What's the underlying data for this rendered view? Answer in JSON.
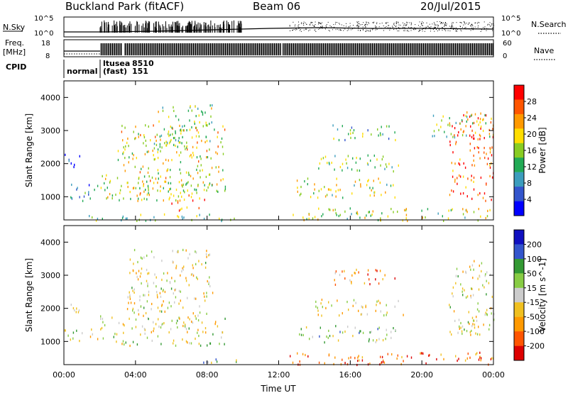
{
  "header": {
    "site_title": "Buckland Park (fitACF)",
    "beam_label": "Beam 06",
    "date_label": "20/Jul/2015"
  },
  "top_panels": {
    "nsky_label": "N.Sky",
    "nsky_ticks": [
      "10^5",
      "10^0"
    ],
    "nsearch_label": "N.Search",
    "nsearch_ticks": [
      "10^5",
      "10^0"
    ],
    "freq_label": "Freq.",
    "freq_unit": "[MHz]",
    "freq_ticks": [
      "18",
      "8"
    ],
    "nave_label": "Nave",
    "nave_ticks": [
      "60",
      "0"
    ],
    "cpid_label": "CPID",
    "cpid_modes": [
      {
        "name": "normal",
        "id": ""
      },
      {
        "name": "ltusea",
        "id": "8510"
      },
      {
        "name": "(fast)",
        "id": "151"
      }
    ]
  },
  "chart_data": [
    {
      "type": "heatmap",
      "name": "power-panel",
      "ylabel": "Slant Range [km]",
      "y_ticks": [
        "4000",
        "3000",
        "2000",
        "1000"
      ],
      "ylim": [
        300,
        4500
      ],
      "x_ticks": [
        "00:00",
        "04:00",
        "08:00",
        "12:00",
        "16:00",
        "20:00",
        "00:00"
      ],
      "xlim_hours": [
        0,
        24
      ],
      "colorbar": {
        "label": "Power [dB]",
        "ticks": [
          "28",
          "24",
          "20",
          "16",
          "12",
          "8",
          "4"
        ],
        "range": [
          0,
          30
        ],
        "colors": [
          "#0000ff",
          "#3355cc",
          "#3c9dbd",
          "#22aa55",
          "#88cc22",
          "#ffdd00",
          "#ff9900",
          "#ff5500",
          "#ff0000"
        ]
      },
      "regions": [
        {
          "t": [
            0.0,
            1.9
          ],
          "r": [
            900,
            1400
          ],
          "level": 0.3
        },
        {
          "t": [
            0.0,
            1.0
          ],
          "r": [
            1900,
            2300
          ],
          "level": 0.05
        },
        {
          "t": [
            2.0,
            7.5
          ],
          "r": [
            900,
            1700
          ],
          "level": 0.55
        },
        {
          "t": [
            3.0,
            9.0
          ],
          "r": [
            1100,
            3200
          ],
          "level": 0.6
        },
        {
          "t": [
            5.0,
            8.3
          ],
          "r": [
            2500,
            3800
          ],
          "level": 0.45
        },
        {
          "t": [
            6.0,
            8.0
          ],
          "r": [
            600,
            1100
          ],
          "level": 0.75
        },
        {
          "t": [
            0.0,
            10.0
          ],
          "r": [
            300,
            500
          ],
          "level": 0.45
        },
        {
          "t": [
            12.5,
            24.0
          ],
          "r": [
            300,
            700
          ],
          "level": 0.55
        },
        {
          "t": [
            13.0,
            18.5
          ],
          "r": [
            1000,
            1600
          ],
          "level": 0.55
        },
        {
          "t": [
            14.0,
            19.0
          ],
          "r": [
            1800,
            2300
          ],
          "level": 0.45
        },
        {
          "t": [
            15.0,
            18.5
          ],
          "r": [
            2700,
            3200
          ],
          "level": 0.4
        },
        {
          "t": [
            21.5,
            24.0
          ],
          "r": [
            900,
            3600
          ],
          "level": 0.82
        },
        {
          "t": [
            20.5,
            24.0
          ],
          "r": [
            2800,
            3500
          ],
          "level": 0.5
        }
      ]
    },
    {
      "type": "heatmap",
      "name": "velocity-panel",
      "ylabel": "Slant Range [km]",
      "y_ticks": [
        "4000",
        "3000",
        "2000",
        "1000"
      ],
      "ylim": [
        300,
        4500
      ],
      "x_ticks": [
        "00:00",
        "04:00",
        "08:00",
        "12:00",
        "16:00",
        "20:00",
        "00:00"
      ],
      "xlim_hours": [
        0,
        24
      ],
      "xlabel": "Time UT",
      "colorbar": {
        "label": "Velocity [m s^-1]",
        "ticks": [
          "200",
          "100",
          "50",
          "15",
          "-15",
          "-50",
          "-100",
          "-200"
        ],
        "range": [
          -250,
          250
        ],
        "colors": [
          "#dd0000",
          "#ff5500",
          "#ff9900",
          "#f0c020",
          "#cccccc",
          "#88cc44",
          "#339933",
          "#3355cc",
          "#1010c0"
        ]
      },
      "regions": [
        {
          "t": [
            0.0,
            1.9
          ],
          "r": [
            1000,
            1400
          ],
          "level": 0.5
        },
        {
          "t": [
            0.0,
            1.0
          ],
          "r": [
            1900,
            2300
          ],
          "level": 0.5
        },
        {
          "t": [
            2.0,
            9.0
          ],
          "r": [
            900,
            1800
          ],
          "level": 0.5
        },
        {
          "t": [
            3.5,
            8.3
          ],
          "r": [
            1800,
            3800
          ],
          "level": 0.45
        },
        {
          "t": [
            7.5,
            10.0
          ],
          "r": [
            300,
            500
          ],
          "level": 0.62
        },
        {
          "t": [
            12.5,
            24.0
          ],
          "r": [
            300,
            700
          ],
          "level": 0.22
        },
        {
          "t": [
            13.0,
            18.5
          ],
          "r": [
            1000,
            1500
          ],
          "level": 0.6
        },
        {
          "t": [
            14.0,
            19.0
          ],
          "r": [
            1800,
            2300
          ],
          "level": 0.45
        },
        {
          "t": [
            15.0,
            18.5
          ],
          "r": [
            2700,
            3200
          ],
          "level": 0.3
        },
        {
          "t": [
            21.5,
            24.0
          ],
          "r": [
            1200,
            3500
          ],
          "level": 0.5
        }
      ]
    }
  ]
}
